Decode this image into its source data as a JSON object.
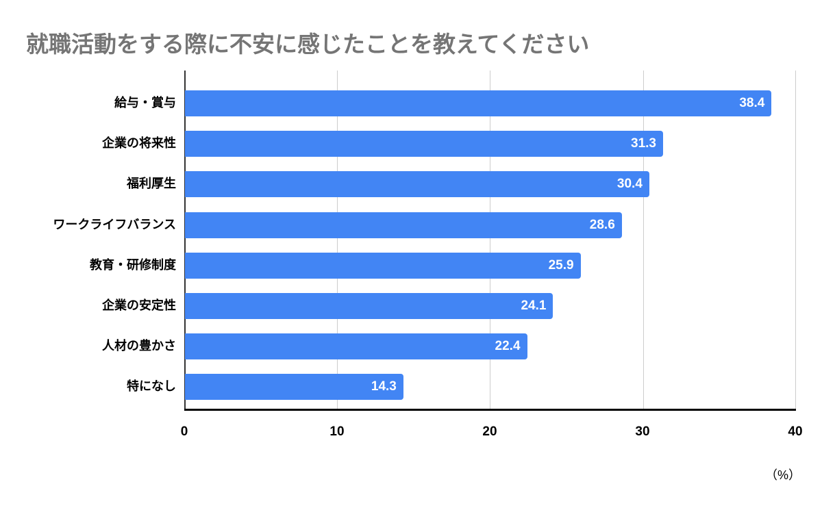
{
  "chart_data": {
    "type": "bar",
    "orientation": "horizontal",
    "title": "就職活動をする際に不安に感じたことを教えてください",
    "categories": [
      "給与・賞与",
      "企業の将来性",
      "福利厚生",
      "ワークライフバランス",
      "教育・研修制度",
      "企業の安定性",
      "人材の豊かさ",
      "特になし"
    ],
    "values": [
      38.4,
      31.3,
      30.4,
      28.6,
      25.9,
      24.1,
      22.4,
      14.3
    ],
    "xlabel": "（%）",
    "ylabel": "",
    "xlim": [
      0,
      40
    ],
    "x_ticks": [
      "0",
      "10",
      "20",
      "30",
      "40"
    ],
    "grid": true,
    "data_labels": true,
    "bar_color": "#4285f4"
  },
  "labels": {
    "v0": "38.4",
    "v1": "31.3",
    "v2": "30.4",
    "v3": "28.6",
    "v4": "25.9",
    "v5": "24.1",
    "v6": "22.4",
    "v7": "14.3"
  }
}
